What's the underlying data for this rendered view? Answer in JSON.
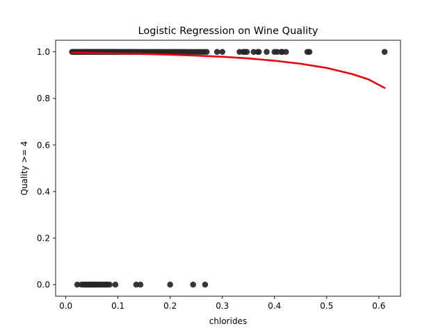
{
  "chart_data": {
    "type": "scatter",
    "title": "Logistic Regression on Wine Quality",
    "xlabel": "chlorides",
    "ylabel": "Quality >= 4",
    "xlim": [
      -0.0195,
      0.6415
    ],
    "ylim": [
      -0.05,
      1.05
    ],
    "xticks": [
      0.0,
      0.1,
      0.2,
      0.3,
      0.4,
      0.5,
      0.6
    ],
    "xtick_labels": [
      "0.0",
      "0.1",
      "0.2",
      "0.3",
      "0.4",
      "0.5",
      "0.6"
    ],
    "yticks": [
      0.0,
      0.2,
      0.4,
      0.6,
      0.8,
      1.0
    ],
    "ytick_labels": [
      "0.0",
      "0.2",
      "0.4",
      "0.6",
      "0.8",
      "1.0"
    ],
    "grid": false,
    "legend": false,
    "colors": {
      "points": "#262626",
      "curve": "#e8000b",
      "axes": "#000000"
    },
    "series": [
      {
        "kind": "points",
        "x": [
          0.012,
          0.014,
          0.016,
          0.018,
          0.02,
          0.022,
          0.024,
          0.026,
          0.028,
          0.03,
          0.032,
          0.034,
          0.036,
          0.038,
          0.04,
          0.042,
          0.044,
          0.046,
          0.048,
          0.05,
          0.052,
          0.054,
          0.056,
          0.058,
          0.06,
          0.062,
          0.064,
          0.066,
          0.068,
          0.07,
          0.072,
          0.074,
          0.076,
          0.078,
          0.08,
          0.082,
          0.084,
          0.086,
          0.088,
          0.09,
          0.092,
          0.094,
          0.096,
          0.098,
          0.1,
          0.103,
          0.106,
          0.109,
          0.112,
          0.115,
          0.118,
          0.121,
          0.124,
          0.127,
          0.13,
          0.134,
          0.138,
          0.142,
          0.146,
          0.15,
          0.154,
          0.158,
          0.162,
          0.166,
          0.17,
          0.174,
          0.178,
          0.182,
          0.186,
          0.19,
          0.194,
          0.198,
          0.202,
          0.206,
          0.21,
          0.214,
          0.218,
          0.222,
          0.226,
          0.23,
          0.235,
          0.24,
          0.245,
          0.25,
          0.255,
          0.26,
          0.265,
          0.27,
          0.29,
          0.3,
          0.333,
          0.34,
          0.343,
          0.347,
          0.36,
          0.368,
          0.37,
          0.385,
          0.4,
          0.405,
          0.413,
          0.415,
          0.422,
          0.463,
          0.467,
          0.611
        ],
        "y": [
          1,
          1,
          1,
          1,
          1,
          1,
          1,
          1,
          1,
          1,
          1,
          1,
          1,
          1,
          1,
          1,
          1,
          1,
          1,
          1,
          1,
          1,
          1,
          1,
          1,
          1,
          1,
          1,
          1,
          1,
          1,
          1,
          1,
          1,
          1,
          1,
          1,
          1,
          1,
          1,
          1,
          1,
          1,
          1,
          1,
          1,
          1,
          1,
          1,
          1,
          1,
          1,
          1,
          1,
          1,
          1,
          1,
          1,
          1,
          1,
          1,
          1,
          1,
          1,
          1,
          1,
          1,
          1,
          1,
          1,
          1,
          1,
          1,
          1,
          1,
          1,
          1,
          1,
          1,
          1,
          1,
          1,
          1,
          1,
          1,
          1,
          1,
          1,
          1,
          1,
          1,
          1,
          1,
          1,
          1,
          1,
          1,
          1,
          1,
          1,
          1,
          1,
          1,
          1,
          1,
          1
        ]
      },
      {
        "kind": "points",
        "x": [
          0.022,
          0.03,
          0.034,
          0.037,
          0.04,
          0.043,
          0.045,
          0.048,
          0.05,
          0.053,
          0.056,
          0.058,
          0.06,
          0.064,
          0.067,
          0.07,
          0.074,
          0.077,
          0.08,
          0.084,
          0.095,
          0.135,
          0.143,
          0.2,
          0.244,
          0.267
        ],
        "y": [
          0,
          0,
          0,
          0,
          0,
          0,
          0,
          0,
          0,
          0,
          0,
          0,
          0,
          0,
          0,
          0,
          0,
          0,
          0,
          0,
          0,
          0,
          0,
          0,
          0,
          0
        ]
      },
      {
        "kind": "curve",
        "x": [
          0.012,
          0.05,
          0.1,
          0.15,
          0.2,
          0.25,
          0.3,
          0.35,
          0.4,
          0.45,
          0.5,
          0.55,
          0.58,
          0.611
        ],
        "y": [
          0.996,
          0.995,
          0.993,
          0.991,
          0.988,
          0.984,
          0.979,
          0.972,
          0.962,
          0.949,
          0.931,
          0.904,
          0.882,
          0.845
        ]
      }
    ]
  }
}
